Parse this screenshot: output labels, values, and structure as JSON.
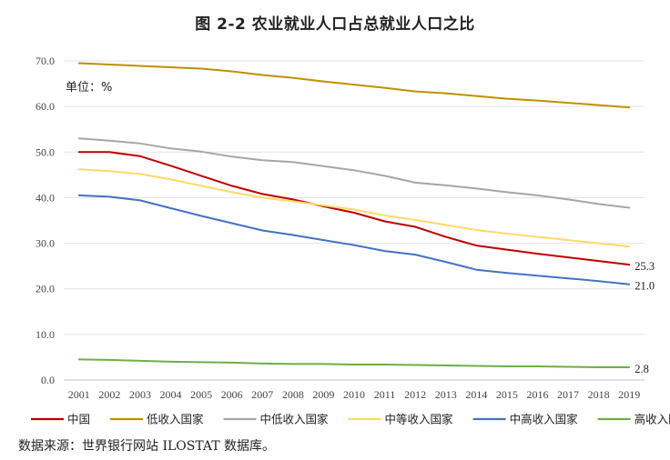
{
  "title": "图 2-2 农业就业人口占总就业人口之比",
  "source": "数据来源：世界银行网站 ILOSTAT 数据库。",
  "chart_data": {
    "type": "line",
    "title": "图 2-2 农业就业人口占总就业人口之比",
    "unit_label": "单位：%",
    "x": [
      2001,
      2002,
      2003,
      2004,
      2005,
      2006,
      2007,
      2008,
      2009,
      2010,
      2011,
      2012,
      2013,
      2014,
      2015,
      2016,
      2017,
      2018,
      2019
    ],
    "ylim": [
      0,
      70
    ],
    "yticks": [
      "0.0",
      "10.0",
      "20.0",
      "30.0",
      "40.0",
      "50.0",
      "60.0",
      "70.0"
    ],
    "grid": true,
    "legend": "bottom",
    "series": [
      {
        "name": "中国",
        "color": "#c00000",
        "end_label": "25.3",
        "values": [
          50.0,
          50.0,
          49.1,
          47.0,
          44.8,
          42.6,
          40.8,
          39.6,
          38.1,
          36.7,
          34.8,
          33.6,
          31.4,
          29.5,
          28.6,
          27.7,
          26.9,
          26.1,
          25.3
        ]
      },
      {
        "name": "低收入国家",
        "color": "#bf9000",
        "values": [
          69.5,
          69.2,
          68.9,
          68.6,
          68.3,
          67.7,
          66.9,
          66.3,
          65.5,
          64.8,
          64.1,
          63.3,
          62.9,
          62.3,
          61.7,
          61.3,
          60.8,
          60.3,
          59.8
        ]
      },
      {
        "name": "中低收入国家",
        "color": "#a6a6a6",
        "values": [
          53.0,
          52.5,
          51.9,
          50.8,
          50.1,
          49.0,
          48.2,
          47.8,
          46.9,
          46.0,
          44.8,
          43.3,
          42.7,
          42.0,
          41.2,
          40.5,
          39.6,
          38.6,
          37.8
        ]
      },
      {
        "name": "中等收入国家",
        "color": "#ffd966",
        "values": [
          46.2,
          45.8,
          45.2,
          44.0,
          42.6,
          41.2,
          40.0,
          39.2,
          38.3,
          37.4,
          36.1,
          35.1,
          34.0,
          32.9,
          32.1,
          31.4,
          30.7,
          30.0,
          29.3
        ]
      },
      {
        "name": "中高收入国家",
        "color": "#4472c4",
        "end_label": "21.0",
        "values": [
          40.5,
          40.2,
          39.4,
          37.7,
          36.0,
          34.4,
          32.8,
          31.8,
          30.7,
          29.6,
          28.3,
          27.5,
          25.9,
          24.2,
          23.5,
          22.9,
          22.3,
          21.7,
          21.0
        ]
      },
      {
        "name": "高收入国家",
        "color": "#70ad47",
        "end_label": "2.8",
        "values": [
          4.5,
          4.4,
          4.2,
          4.0,
          3.9,
          3.8,
          3.6,
          3.5,
          3.5,
          3.4,
          3.4,
          3.3,
          3.2,
          3.1,
          3.0,
          3.0,
          2.9,
          2.8,
          2.8
        ]
      }
    ]
  }
}
